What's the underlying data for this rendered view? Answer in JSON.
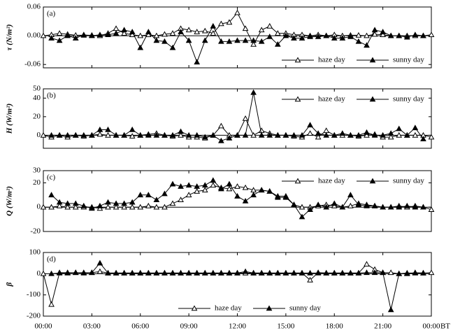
{
  "chart_data": [
    {
      "type": "line",
      "panel_label": "(a)",
      "ylabel": "τ (N/m²)",
      "x": [
        0,
        0.5,
        1,
        1.5,
        2,
        2.5,
        3,
        3.5,
        4,
        4.5,
        5,
        5.5,
        6,
        6.5,
        7,
        7.5,
        8,
        8.5,
        9,
        9.5,
        10,
        10.5,
        11,
        11.5,
        12,
        12.5,
        13,
        13.5,
        14,
        14.5,
        15,
        15.5,
        16,
        16.5,
        17,
        17.5,
        18,
        18.5,
        19,
        19.5,
        20,
        20.5,
        21,
        21.5,
        22,
        22.5,
        23,
        23.5,
        24
      ],
      "xlim": [
        0,
        24
      ],
      "ylim": [
        -0.067,
        0.06
      ],
      "yticks": [
        {
          "value": -0.06,
          "label": "-0.06"
        },
        {
          "value": 0,
          "label": "0.00"
        },
        {
          "value": 0.06,
          "label": "0.06"
        }
      ],
      "legend": "lower right",
      "series": [
        {
          "name": "haze day",
          "color": "#000000",
          "marker_fill": "#ffffff",
          "values": [
            0,
            0.002,
            0.005,
            0.003,
            0.001,
            0.001,
            0.001,
            0,
            0.005,
            0.015,
            0.005,
            0.002,
            0,
            0.002,
            0,
            0.003,
            0.005,
            0.015,
            0.012,
            0.008,
            0.01,
            0.005,
            0.025,
            0.028,
            0.048,
            0.015,
            -0.018,
            0.012,
            0.02,
            0.005,
            0.005,
            0.002,
            0.002,
            0,
            0.002,
            0,
            0.002,
            0,
            0.001,
            0.001,
            0,
            0.003,
            0.002,
            0,
            0,
            0,
            0,
            0,
            0.002
          ]
        },
        {
          "name": "sunny day",
          "color": "#000000",
          "marker_fill": "#000000",
          "values": [
            null,
            -0.005,
            -0.01,
            0,
            -0.005,
            0.002,
            0,
            0.002,
            0.002,
            0.005,
            0.012,
            0.008,
            -0.025,
            0.008,
            -0.01,
            -0.012,
            -0.025,
            0.008,
            -0.01,
            -0.055,
            -0.01,
            0.02,
            -0.012,
            -0.012,
            -0.01,
            -0.01,
            -0.01,
            -0.012,
            -0.002,
            -0.018,
            0,
            -0.005,
            -0.005,
            -0.002,
            -0.002,
            0,
            -0.005,
            -0.005,
            -0.002,
            -0.012,
            -0.02,
            0.012,
            0.008,
            0,
            0,
            -0.003,
            0.002,
            0,
            null
          ]
        }
      ]
    },
    {
      "type": "line",
      "panel_label": "(b)",
      "ylabel": "H (W/m²)",
      "x": [
        0,
        0.5,
        1,
        1.5,
        2,
        2.5,
        3,
        3.5,
        4,
        4.5,
        5,
        5.5,
        6,
        6.5,
        7,
        7.5,
        8,
        8.5,
        9,
        9.5,
        10,
        10.5,
        11,
        11.5,
        12,
        12.5,
        13,
        13.5,
        14,
        14.5,
        15,
        15.5,
        16,
        16.5,
        17,
        17.5,
        18,
        18.5,
        19,
        19.5,
        20,
        20.5,
        21,
        21.5,
        22,
        22.5,
        23,
        23.5,
        24
      ],
      "xlim": [
        0,
        24
      ],
      "ylim": [
        -14,
        50
      ],
      "yticks": [
        0,
        20,
        40,
        50
      ],
      "legend": "upper right",
      "series": [
        {
          "name": "haze day",
          "color": "#000000",
          "marker_fill": "#ffffff",
          "values": [
            0,
            -2,
            0,
            -2,
            0,
            -1,
            0,
            1,
            0,
            0,
            0,
            -1,
            0,
            1,
            2,
            0,
            -1,
            0,
            -2,
            -2,
            -3,
            0,
            10,
            0,
            0,
            18,
            0,
            5,
            2,
            0,
            0,
            -1,
            -2,
            2,
            -2,
            5,
            0,
            0,
            0,
            -1,
            0,
            1,
            -2,
            -2,
            0,
            0,
            0,
            0,
            -2
          ]
        },
        {
          "name": "sunny day",
          "color": "#000000",
          "marker_fill": "#000000",
          "values": [
            null,
            0,
            0,
            0,
            0,
            0,
            0,
            6,
            6,
            0,
            0,
            6,
            0,
            0,
            0,
            0,
            0,
            4,
            0,
            0,
            -2,
            0,
            -6,
            -3,
            0,
            0,
            46,
            0,
            0,
            0,
            0,
            0,
            0,
            11,
            2,
            0,
            0,
            2,
            0,
            0,
            3,
            0,
            0,
            2,
            7,
            0,
            8,
            -4,
            null
          ]
        }
      ]
    },
    {
      "type": "line",
      "panel_label": "(c)",
      "ylabel": "Q (W/m²)",
      "x": [
        0,
        0.5,
        1,
        1.5,
        2,
        2.5,
        3,
        3.5,
        4,
        4.5,
        5,
        5.5,
        6,
        6.5,
        7,
        7.5,
        8,
        8.5,
        9,
        9.5,
        10,
        10.5,
        11,
        11.5,
        12,
        12.5,
        13,
        13.5,
        14,
        14.5,
        15,
        15.5,
        16,
        16.5,
        17,
        17.5,
        18,
        18.5,
        19,
        19.5,
        20,
        20.5,
        21,
        21.5,
        22,
        22.5,
        23,
        23.5,
        24
      ],
      "xlim": [
        0,
        24
      ],
      "ylim": [
        -20,
        30
      ],
      "yticks": [
        -20,
        0,
        20,
        30
      ],
      "legend": "upper right",
      "series": [
        {
          "name": "haze day",
          "color": "#000000",
          "marker_fill": "#ffffff",
          "values": [
            0,
            0,
            1,
            0,
            0,
            0,
            0,
            -1,
            0,
            0,
            0,
            0,
            0,
            1,
            0,
            0,
            3,
            6,
            10,
            13,
            14,
            18,
            16,
            15,
            17,
            16,
            14,
            14,
            13,
            9,
            9,
            2,
            0,
            0,
            1,
            2,
            1,
            0,
            1,
            3,
            2,
            1,
            0,
            0,
            1,
            0,
            1,
            0,
            -2
          ]
        },
        {
          "name": "sunny day",
          "color": "#000000",
          "marker_fill": "#000000",
          "values": [
            null,
            10,
            4,
            3,
            3,
            1,
            -1,
            1,
            4,
            3,
            3,
            4,
            10,
            10,
            6,
            11,
            19,
            17,
            18,
            17,
            18,
            22,
            15,
            19,
            9,
            5,
            10,
            14,
            13,
            8,
            8,
            2,
            -8,
            -2,
            2,
            0,
            3,
            0,
            10,
            2,
            1,
            1,
            0,
            0,
            0,
            1,
            0,
            0,
            null
          ]
        }
      ]
    },
    {
      "type": "line",
      "panel_label": "(d)",
      "ylabel": "β",
      "xlabel": "BT",
      "x": [
        0,
        0.5,
        1,
        1.5,
        2,
        2.5,
        3,
        3.5,
        4,
        4.5,
        5,
        5.5,
        6,
        6.5,
        7,
        7.5,
        8,
        8.5,
        9,
        9.5,
        10,
        10.5,
        11,
        11.5,
        12,
        12.5,
        13,
        13.5,
        14,
        14.5,
        15,
        15.5,
        16,
        16.5,
        17,
        17.5,
        18,
        18.5,
        19,
        19.5,
        20,
        20.5,
        21,
        21.5,
        22,
        22.5,
        23,
        23.5,
        24
      ],
      "xlim": [
        0,
        24
      ],
      "ylim": [
        -200,
        100
      ],
      "xticks": [
        {
          "value": 0,
          "label": "00:00"
        },
        {
          "value": 3,
          "label": "03:00"
        },
        {
          "value": 6,
          "label": "06:00"
        },
        {
          "value": 9,
          "label": "09:00"
        },
        {
          "value": 12,
          "label": "12:00"
        },
        {
          "value": 15,
          "label": "15:00"
        },
        {
          "value": 18,
          "label": "18:00"
        },
        {
          "value": 21,
          "label": "21:00"
        },
        {
          "value": 24,
          "label": "00:00"
        }
      ],
      "yticks": [
        -200,
        -100,
        0,
        100
      ],
      "legend": "lower center",
      "series": [
        {
          "name": "haze day",
          "color": "#000000",
          "marker_fill": "#ffffff",
          "values": [
            0,
            -145,
            5,
            5,
            5,
            5,
            5,
            10,
            3,
            3,
            3,
            3,
            3,
            3,
            3,
            3,
            3,
            3,
            3,
            3,
            3,
            3,
            3,
            3,
            3,
            3,
            3,
            3,
            3,
            3,
            3,
            3,
            3,
            -30,
            5,
            3,
            3,
            3,
            3,
            3,
            45,
            20,
            5,
            5,
            0,
            3,
            3,
            3,
            5
          ]
        },
        {
          "name": "sunny day",
          "color": "#000000",
          "marker_fill": "#000000",
          "values": [
            null,
            0,
            3,
            3,
            5,
            3,
            5,
            50,
            3,
            3,
            3,
            3,
            3,
            3,
            3,
            3,
            3,
            3,
            3,
            3,
            3,
            3,
            3,
            3,
            3,
            10,
            3,
            3,
            3,
            3,
            3,
            3,
            3,
            3,
            3,
            3,
            3,
            3,
            3,
            3,
            5,
            5,
            5,
            -170,
            0,
            0,
            5,
            3,
            null
          ]
        }
      ]
    }
  ]
}
